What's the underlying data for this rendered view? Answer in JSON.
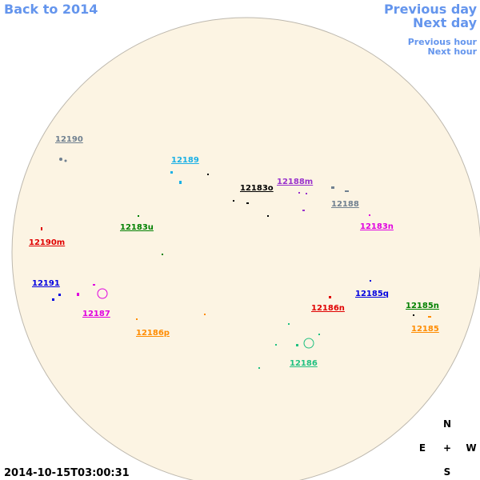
{
  "nav": {
    "back": "Back to 2014",
    "previous_day": "Previous day",
    "next_day": "Next day",
    "previous_hour": "Previous hour",
    "next_hour": "Next hour"
  },
  "regions": [
    {
      "label": "12190",
      "color": "#708090"
    },
    {
      "label": "12189",
      "color": "#1ab0e6"
    },
    {
      "label": "12183o",
      "color": "#000000"
    },
    {
      "label": "12188m",
      "color": "#9932cc"
    },
    {
      "label": "12188",
      "color": "#708090"
    },
    {
      "label": "12190m",
      "color": "#e00000"
    },
    {
      "label": "12183u",
      "color": "#008000"
    },
    {
      "label": "12183n",
      "color": "#e000e0"
    },
    {
      "label": "12191",
      "color": "#0000e0"
    },
    {
      "label": "12187",
      "color": "#e000e0"
    },
    {
      "label": "12186n",
      "color": "#e00000"
    },
    {
      "label": "12185q",
      "color": "#0000e0"
    },
    {
      "label": "12185n",
      "color": "#008000"
    },
    {
      "label": "12185",
      "color": "#ff8c00"
    },
    {
      "label": "12186p",
      "color": "#ff8c00"
    },
    {
      "label": "12186",
      "color": "#20c080"
    }
  ],
  "timestamp": "2014-10-15T03:00:31",
  "compass": {
    "north": "N",
    "east": "E",
    "center": "+",
    "west": "W",
    "south": "S"
  }
}
